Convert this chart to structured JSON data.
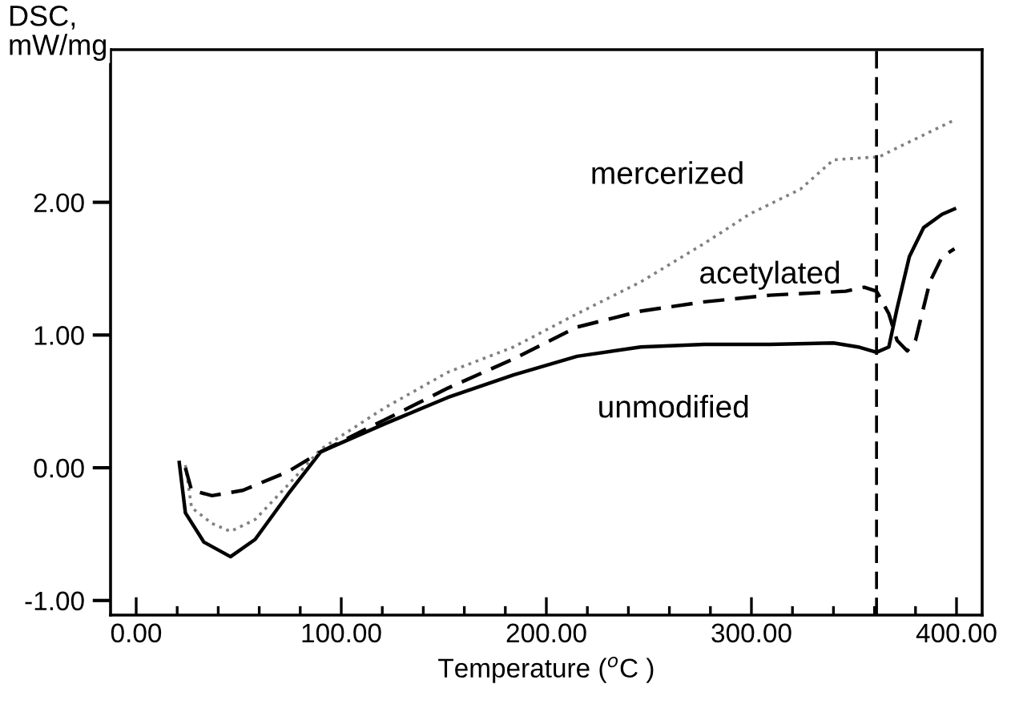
{
  "chart_data": {
    "type": "line",
    "xlabel": "Temperature ($^{o}$C )",
    "ylabel": "DSC,\nmW/mg",
    "xlim": [
      -12.5,
      412.5
    ],
    "ylim": [
      -1.11,
      3.15
    ],
    "xticks": [
      {
        "value": 0,
        "label": "0.00"
      },
      {
        "value": 20,
        "label": null
      },
      {
        "value": 40,
        "label": null
      },
      {
        "value": 60,
        "label": null
      },
      {
        "value": 80,
        "label": null
      },
      {
        "value": 100,
        "label": "100.00"
      },
      {
        "value": 120,
        "label": null
      },
      {
        "value": 140,
        "label": null
      },
      {
        "value": 160,
        "label": null
      },
      {
        "value": 180,
        "label": null
      },
      {
        "value": 200,
        "label": "200.00"
      },
      {
        "value": 220,
        "label": null
      },
      {
        "value": 240,
        "label": null
      },
      {
        "value": 260,
        "label": null
      },
      {
        "value": 280,
        "label": null
      },
      {
        "value": 300,
        "label": "300.00"
      },
      {
        "value": 320,
        "label": null
      },
      {
        "value": 340,
        "label": null
      },
      {
        "value": 360,
        "label": null
      },
      {
        "value": 380,
        "label": null
      },
      {
        "value": 400,
        "label": "400.00"
      }
    ],
    "yticks": [
      {
        "value": -1,
        "label": "-1.00"
      },
      {
        "value": 0,
        "label": "0.00"
      },
      {
        "value": 1,
        "label": "1.00"
      },
      {
        "value": 2,
        "label": "2.00"
      }
    ],
    "grid": false,
    "legend": false,
    "marker": "none",
    "series": [
      {
        "name": "unmodified",
        "color": "#000000",
        "line_style": "solid",
        "x": [
          21,
          24,
          33,
          46,
          58,
          74,
          90,
          121,
          152,
          184,
          215,
          246,
          277,
          309,
          340,
          352,
          361,
          367,
          371,
          377,
          384,
          393,
          399
        ],
        "values": [
          0.04,
          -0.34,
          -0.56,
          -0.67,
          -0.54,
          -0.2,
          0.12,
          0.33,
          0.53,
          0.7,
          0.84,
          0.91,
          0.93,
          0.93,
          0.94,
          0.91,
          0.87,
          0.91,
          1.2,
          1.59,
          1.81,
          1.91,
          1.95
        ]
      },
      {
        "name": "mercerized",
        "color": "#808080",
        "line_style": "dotted",
        "x": [
          24,
          27,
          37,
          46,
          58,
          74,
          90,
          121,
          152,
          184,
          215,
          246,
          277,
          299,
          324,
          340,
          359,
          362,
          371,
          399
        ],
        "values": [
          0.02,
          -0.3,
          -0.42,
          -0.48,
          -0.39,
          -0.13,
          0.14,
          0.45,
          0.72,
          0.91,
          1.16,
          1.4,
          1.69,
          1.91,
          2.1,
          2.32,
          2.34,
          2.34,
          2.41,
          2.62
        ]
      },
      {
        "name": "acetylated",
        "color": "#000000",
        "line_style": "dashed",
        "x": [
          24,
          27,
          37,
          52,
          74,
          90,
          121,
          152,
          184,
          215,
          246,
          277,
          309,
          346,
          355,
          361,
          367,
          371,
          376,
          380,
          387,
          393,
          399
        ],
        "values": [
          0.0,
          -0.17,
          -0.21,
          -0.17,
          -0.03,
          0.12,
          0.36,
          0.6,
          0.82,
          1.06,
          1.18,
          1.25,
          1.3,
          1.33,
          1.36,
          1.33,
          1.16,
          0.96,
          0.88,
          0.96,
          1.4,
          1.59,
          1.65
        ]
      }
    ],
    "ref_lines": [
      {
        "axis": "x",
        "value": 361,
        "label": null,
        "color": "#000000",
        "line_style": "dashed"
      }
    ]
  }
}
